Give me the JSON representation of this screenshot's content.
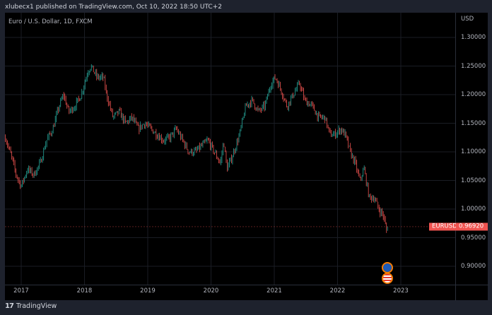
{
  "header": {
    "text": "xlubecx1 published on TradingView.com, Oct 10, 2022 18:50 UTC+2"
  },
  "symbol_title": "Euro / U.S. Dollar, 1D, FXCM",
  "price_axis": {
    "currency": "USD",
    "ticks": [
      "1.30000",
      "1.25000",
      "1.20000",
      "1.15000",
      "1.10000",
      "1.05000",
      "1.00000",
      "0.95000",
      "0.90000"
    ]
  },
  "time_axis": {
    "ticks": [
      "2017",
      "2018",
      "2019",
      "2020",
      "2021",
      "2022",
      "2023"
    ]
  },
  "last_price": {
    "symbol": "EURUSD",
    "value": "0.96920"
  },
  "events": [
    {
      "name": "eu-flag-icon"
    },
    {
      "name": "us-flag-icon"
    }
  ],
  "footer": {
    "brand": "TradingView",
    "logo": "17"
  },
  "colors": {
    "up": "#26a69a",
    "down": "#ef5350",
    "grid": "#1a1d24",
    "label_bg": "#ef5350"
  },
  "chart_data": {
    "type": "candlestick",
    "title": "Euro / U.S. Dollar, 1D, FXCM",
    "xlabel": "",
    "ylabel": "USD",
    "ylim": [
      0.88,
      1.34
    ],
    "xlim": [
      2016.75,
      2023.85
    ],
    "x_ticks": [
      2017,
      2018,
      2019,
      2020,
      2021,
      2022,
      2023
    ],
    "y_ticks": [
      0.9,
      0.95,
      1.0,
      1.05,
      1.1,
      1.15,
      1.2,
      1.25,
      1.3
    ],
    "last_price": 0.9692,
    "grid": true,
    "path_waypoints": [
      [
        2016.75,
        1.125
      ],
      [
        2016.85,
        1.09
      ],
      [
        2016.92,
        1.06
      ],
      [
        2017.0,
        1.04
      ],
      [
        2017.1,
        1.07
      ],
      [
        2017.2,
        1.06
      ],
      [
        2017.3,
        1.08
      ],
      [
        2017.4,
        1.12
      ],
      [
        2017.5,
        1.14
      ],
      [
        2017.6,
        1.18
      ],
      [
        2017.67,
        1.2
      ],
      [
        2017.75,
        1.17
      ],
      [
        2017.85,
        1.18
      ],
      [
        2017.95,
        1.2
      ],
      [
        2018.05,
        1.24
      ],
      [
        2018.1,
        1.25
      ],
      [
        2018.2,
        1.23
      ],
      [
        2018.3,
        1.23
      ],
      [
        2018.35,
        1.2
      ],
      [
        2018.45,
        1.16
      ],
      [
        2018.55,
        1.17
      ],
      [
        2018.65,
        1.15
      ],
      [
        2018.75,
        1.16
      ],
      [
        2018.85,
        1.14
      ],
      [
        2018.95,
        1.15
      ],
      [
        2019.05,
        1.14
      ],
      [
        2019.15,
        1.13
      ],
      [
        2019.25,
        1.12
      ],
      [
        2019.35,
        1.125
      ],
      [
        2019.45,
        1.14
      ],
      [
        2019.55,
        1.12
      ],
      [
        2019.65,
        1.1
      ],
      [
        2019.75,
        1.1
      ],
      [
        2019.85,
        1.11
      ],
      [
        2019.95,
        1.12
      ],
      [
        2020.05,
        1.1
      ],
      [
        2020.15,
        1.08
      ],
      [
        2020.2,
        1.12
      ],
      [
        2020.25,
        1.07
      ],
      [
        2020.33,
        1.09
      ],
      [
        2020.45,
        1.13
      ],
      [
        2020.55,
        1.18
      ],
      [
        2020.65,
        1.19
      ],
      [
        2020.75,
        1.17
      ],
      [
        2020.85,
        1.18
      ],
      [
        2020.95,
        1.22
      ],
      [
        2021.02,
        1.23
      ],
      [
        2021.1,
        1.21
      ],
      [
        2021.2,
        1.18
      ],
      [
        2021.3,
        1.2
      ],
      [
        2021.4,
        1.22
      ],
      [
        2021.48,
        1.19
      ],
      [
        2021.6,
        1.18
      ],
      [
        2021.7,
        1.16
      ],
      [
        2021.8,
        1.16
      ],
      [
        2021.88,
        1.13
      ],
      [
        2021.95,
        1.13
      ],
      [
        2022.05,
        1.14
      ],
      [
        2022.12,
        1.13
      ],
      [
        2022.2,
        1.1
      ],
      [
        2022.28,
        1.08
      ],
      [
        2022.35,
        1.05
      ],
      [
        2022.42,
        1.07
      ],
      [
        2022.5,
        1.02
      ],
      [
        2022.58,
        1.02
      ],
      [
        2022.65,
        1.0
      ],
      [
        2022.72,
        0.99
      ],
      [
        2022.76,
        0.97
      ],
      [
        2022.78,
        0.96
      ],
      [
        2022.79,
        0.9692
      ]
    ]
  }
}
